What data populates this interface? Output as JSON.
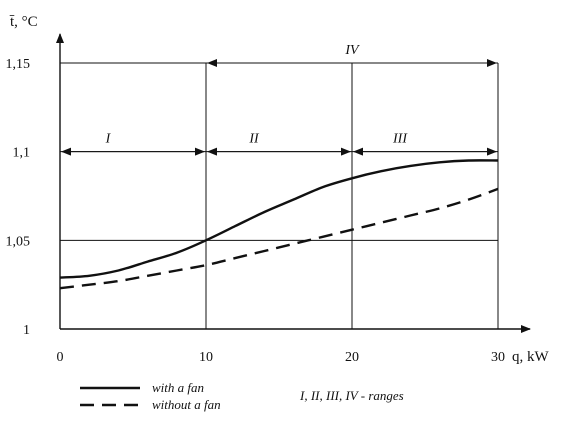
{
  "chart_data": {
    "type": "line",
    "ylabel": "t̄, °C",
    "xlabel": "q, kW",
    "xlim": [
      0,
      30
    ],
    "ylim": [
      1,
      1.15
    ],
    "xticks": [
      "0",
      "10",
      "20",
      "30"
    ],
    "yticks": [
      "1",
      "1,05",
      "1,1",
      "1,15"
    ],
    "grid": true,
    "series": [
      {
        "name": "with a fan",
        "style": "solid",
        "x": [
          0,
          2,
          4,
          6,
          8,
          10,
          12,
          14,
          16,
          18,
          20,
          22,
          24,
          26,
          28,
          30
        ],
        "y": [
          1.029,
          1.03,
          1.033,
          1.038,
          1.043,
          1.05,
          1.058,
          1.066,
          1.073,
          1.08,
          1.085,
          1.089,
          1.092,
          1.094,
          1.095,
          1.095
        ]
      },
      {
        "name": "without a fan",
        "style": "dashed",
        "x": [
          0,
          2,
          4,
          6,
          8,
          10,
          12,
          14,
          16,
          18,
          20,
          22,
          24,
          26,
          28,
          30
        ],
        "y": [
          1.023,
          1.025,
          1.027,
          1.03,
          1.033,
          1.036,
          1.04,
          1.044,
          1.048,
          1.052,
          1.056,
          1.06,
          1.064,
          1.068,
          1.073,
          1.079
        ]
      }
    ],
    "ranges": [
      {
        "label": "I",
        "from": 0,
        "to": 10,
        "y": 1.1
      },
      {
        "label": "II",
        "from": 10,
        "to": 20,
        "y": 1.1
      },
      {
        "label": "III",
        "from": 20,
        "to": 30,
        "y": 1.1
      },
      {
        "label": "IV",
        "from": 10,
        "to": 30,
        "y": 1.15
      }
    ],
    "legend": {
      "with_fan": "with a fan",
      "without_fan": "without a fan",
      "ranges_note": "I, II, III, IV - ranges"
    }
  }
}
